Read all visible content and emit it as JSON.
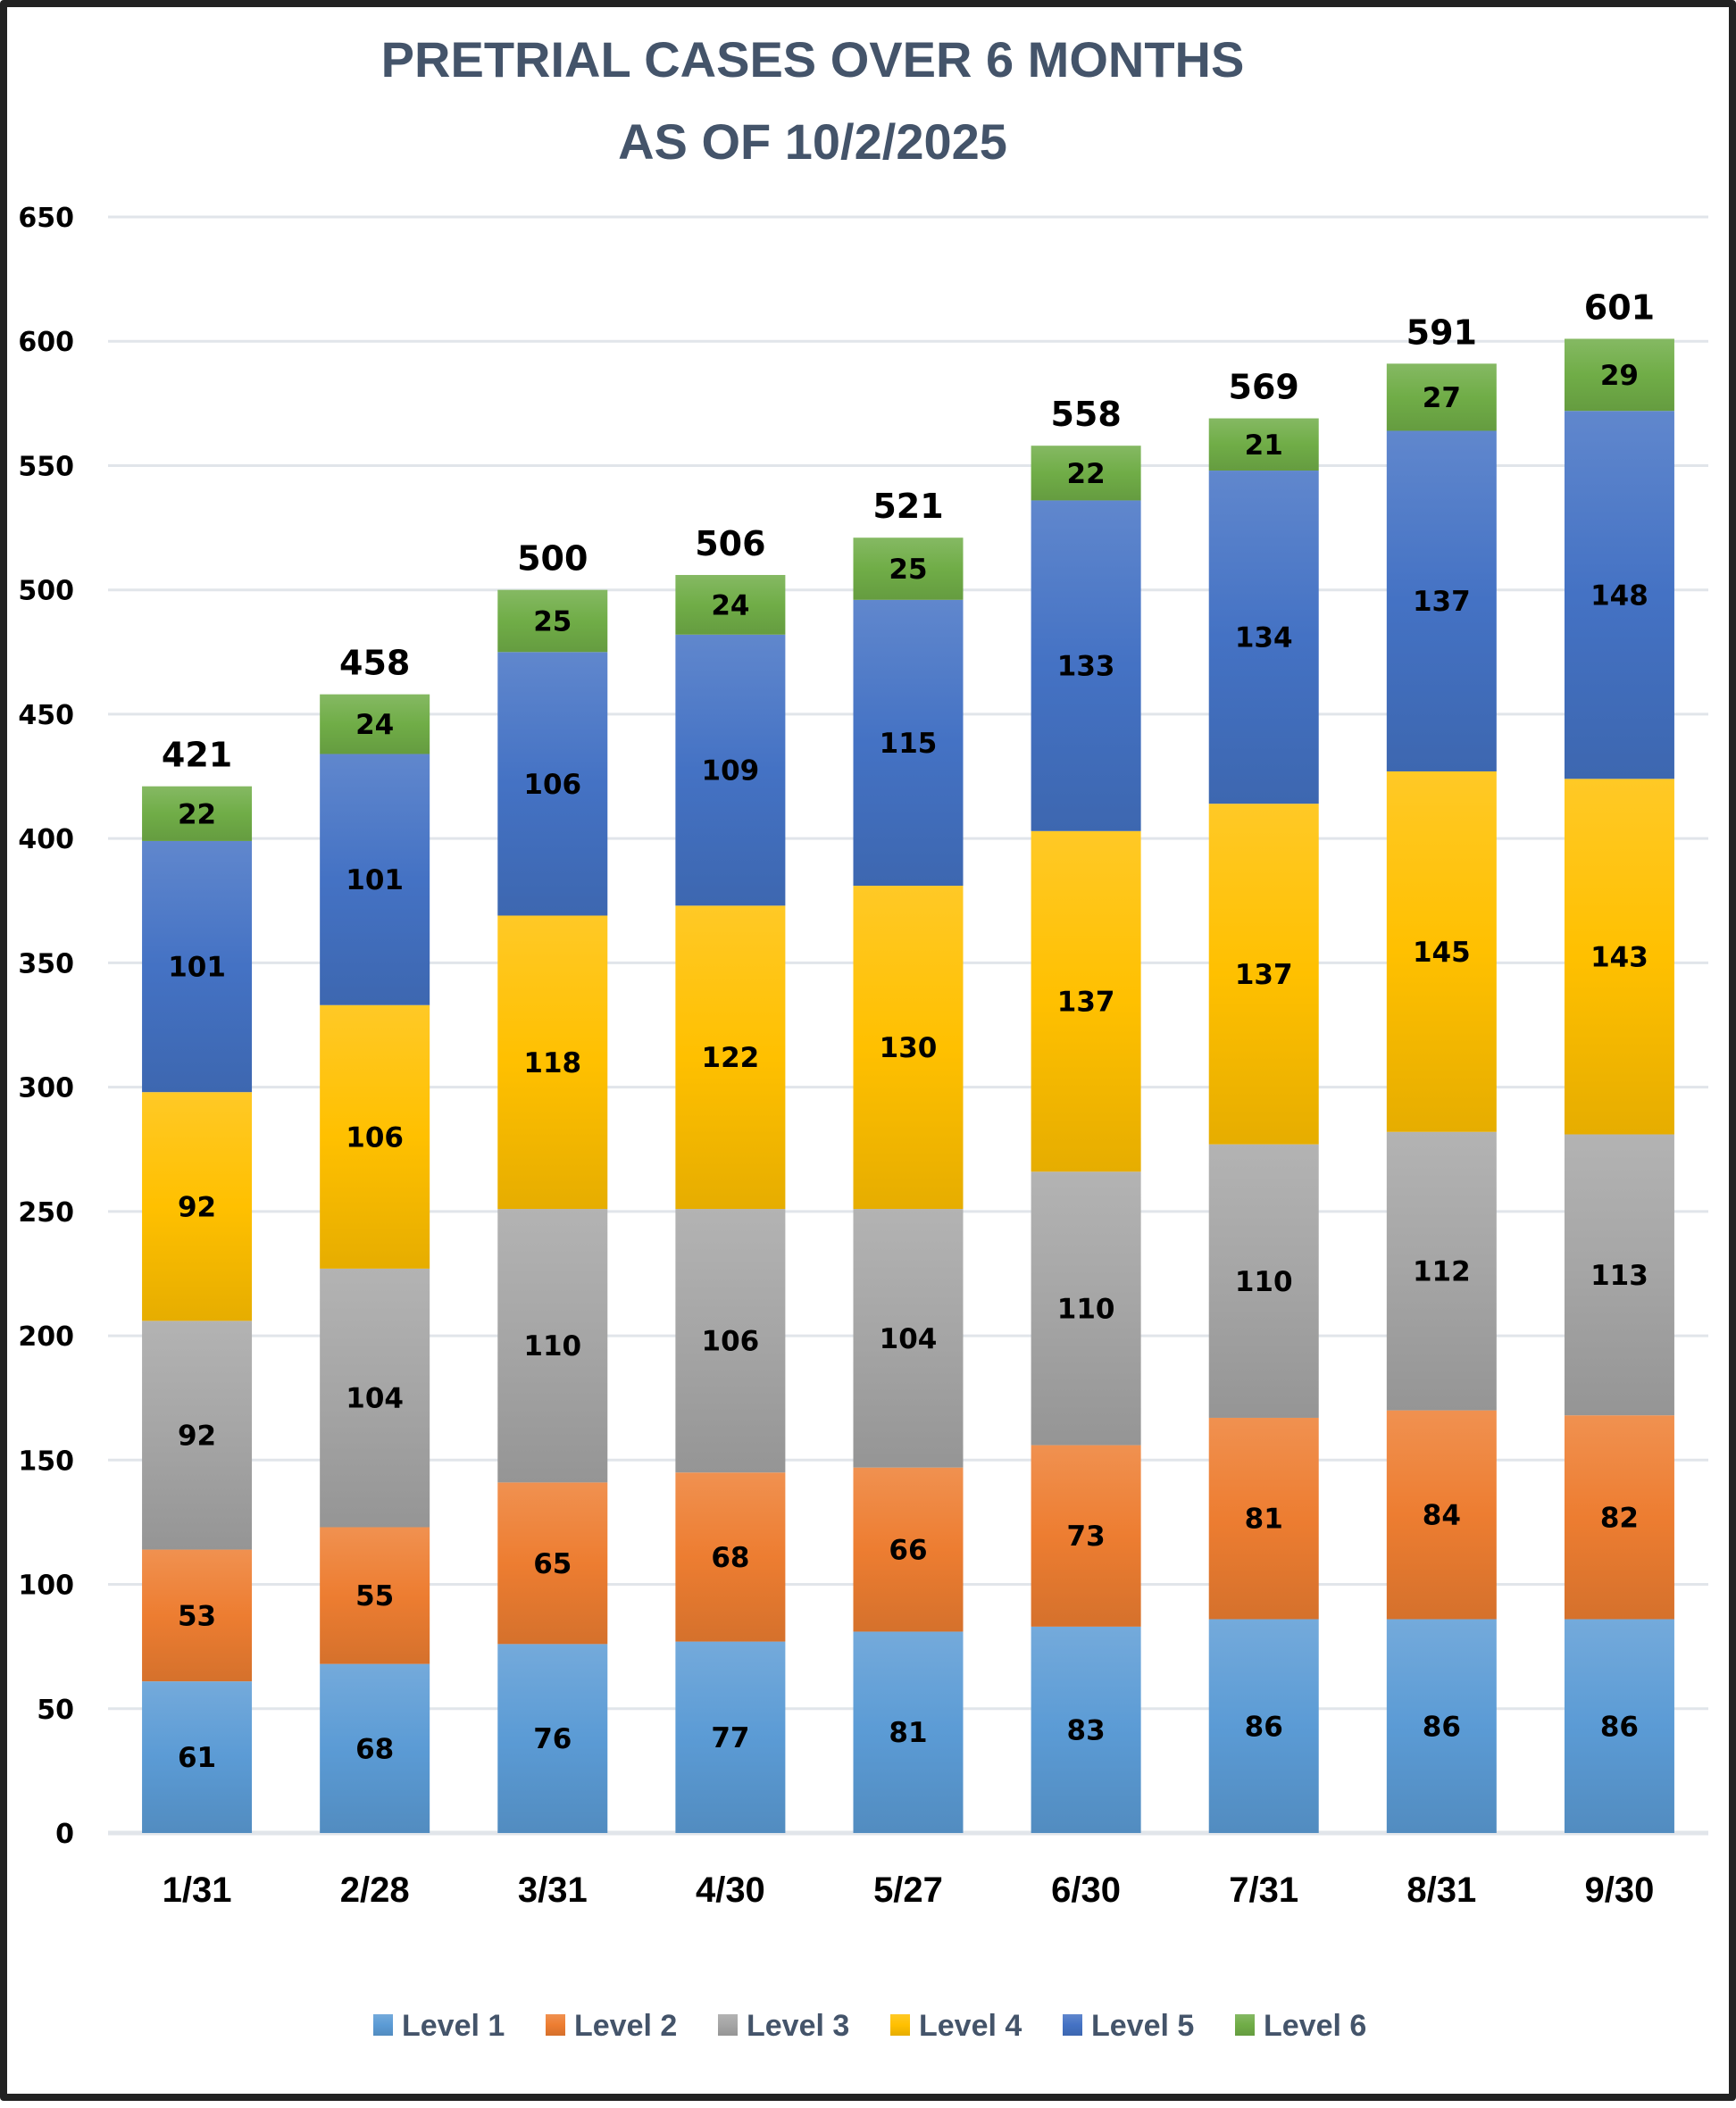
{
  "chart_data": {
    "type": "bar",
    "stacked": true,
    "title": [
      "PRETRIAL CASES OVER 6 MONTHS",
      "AS OF 10/2/2025"
    ],
    "xlabel": "",
    "ylabel": "",
    "ylim": [
      0,
      650
    ],
    "yticks": [
      0,
      50,
      100,
      150,
      200,
      250,
      300,
      350,
      400,
      450,
      500,
      550,
      600,
      650
    ],
    "grid": true,
    "legend_position": "bottom",
    "categories": [
      "1/31",
      "2/28",
      "3/31",
      "4/30",
      "5/27",
      "6/30",
      "7/31",
      "8/31",
      "9/30"
    ],
    "series": [
      {
        "name": "Level 1",
        "color": "#5b9bd5",
        "values": [
          61,
          68,
          76,
          77,
          81,
          83,
          86,
          86,
          86
        ]
      },
      {
        "name": "Level 2",
        "color": "#ed7d31",
        "values": [
          53,
          55,
          65,
          68,
          66,
          73,
          81,
          84,
          82
        ]
      },
      {
        "name": "Level 3",
        "color": "#a5a5a5",
        "values": [
          92,
          104,
          110,
          106,
          104,
          110,
          110,
          112,
          113
        ]
      },
      {
        "name": "Level 4",
        "color": "#ffc000",
        "values": [
          92,
          106,
          118,
          122,
          130,
          137,
          137,
          145,
          143
        ]
      },
      {
        "name": "Level 5",
        "color": "#4472c4",
        "values": [
          101,
          101,
          106,
          109,
          115,
          133,
          134,
          137,
          148
        ]
      },
      {
        "name": "Level 6",
        "color": "#70ad47",
        "values": [
          22,
          24,
          25,
          24,
          25,
          22,
          21,
          27,
          29
        ]
      }
    ],
    "totals": [
      421,
      458,
      500,
      506,
      521,
      558,
      569,
      591,
      601
    ]
  }
}
